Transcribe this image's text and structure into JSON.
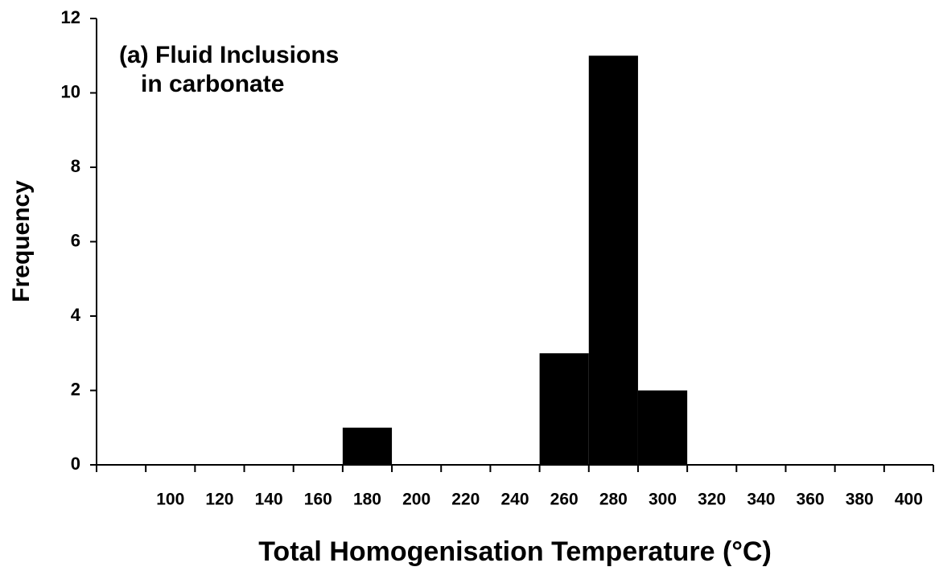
{
  "chart_data": {
    "type": "bar",
    "x_label": "Total Homogenisation Temperature (°C)",
    "y_label": "Frequency",
    "annotations": [
      "(a) Fluid Inclusions",
      "in carbonate"
    ],
    "categories": [
      null,
      "100",
      "120",
      "140",
      "160",
      "180",
      "200",
      "220",
      "240",
      "260",
      "280",
      "300",
      "320",
      "340",
      "360",
      "380",
      "400"
    ],
    "values": [
      0,
      0,
      0,
      0,
      0,
      1,
      0,
      0,
      0,
      3,
      11,
      2,
      0,
      0,
      0,
      0,
      0
    ],
    "color": "#000000",
    "ylim": [
      0,
      12
    ],
    "yticks": [
      0,
      2,
      4,
      6,
      8,
      10,
      12
    ],
    "grid": false
  }
}
